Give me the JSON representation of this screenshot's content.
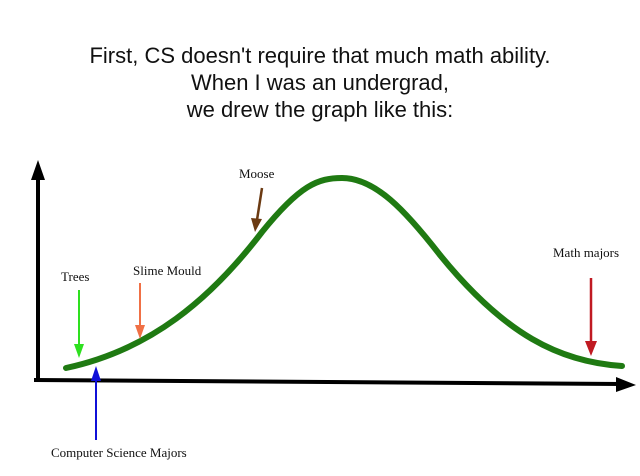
{
  "title_lines": [
    "First, CS doesn't require that much math ability.",
    "When I was an undergrad,",
    "we drew the graph like this:"
  ],
  "labels": {
    "trees": "Trees",
    "slime_mould": "Slime Mould",
    "moose": "Moose",
    "math_majors": "Math majors",
    "cs_majors": "Computer Science Majors"
  },
  "colors": {
    "curve": "#1f7a12",
    "axes": "#000000",
    "trees_arrow": "#2ee01f",
    "slime_arrow": "#f07045",
    "moose_arrow": "#6b3a12",
    "math_arrow": "#c01a22",
    "cs_arrow": "#1010d8"
  }
}
